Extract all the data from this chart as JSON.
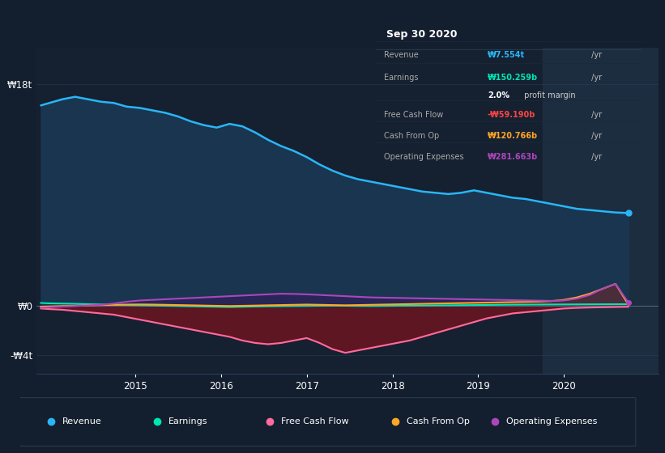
{
  "bg_color": "#131e2e",
  "plot_bg_color": "#152030",
  "highlight_bg": "#1c2d40",
  "colors": {
    "revenue": "#29b6f6",
    "earnings": "#00e5b4",
    "free_cash_flow": "#ff6b9d",
    "cash_from_op": "#ffa726",
    "operating_expenses": "#ab47bc"
  },
  "revenue_fill": "#1a3550",
  "fcf_fill": "#5a1a2a",
  "cashop_fill_pos": "#7a5010",
  "opex_fill": "#3a1a5a",
  "legend_items": [
    {
      "label": "Revenue",
      "color": "#29b6f6"
    },
    {
      "label": "Earnings",
      "color": "#00e5b4"
    },
    {
      "label": "Free Cash Flow",
      "color": "#ff6b9d"
    },
    {
      "label": "Cash From Op",
      "color": "#ffa726"
    },
    {
      "label": "Operating Expenses",
      "color": "#ab47bc"
    }
  ],
  "info_title": "Sep 30 2020",
  "info_rows": [
    {
      "label": "Revenue",
      "value": "₩7.554t",
      "suffix": " /yr",
      "color": "#29b6f6"
    },
    {
      "label": "Earnings",
      "value": "₩150.259b",
      "suffix": " /yr",
      "color": "#00e5b4"
    },
    {
      "label": "",
      "value": "2.0%",
      "suffix": " profit margin",
      "color": "#ffffff"
    },
    {
      "label": "Free Cash Flow",
      "value": "-₩59.190b",
      "suffix": " /yr",
      "color": "#ff4444"
    },
    {
      "label": "Cash From Op",
      "value": "₩120.766b",
      "suffix": " /yr",
      "color": "#ffa726"
    },
    {
      "label": "Operating Expenses",
      "value": "₩281.663b",
      "suffix": " /yr",
      "color": "#ab47bc"
    }
  ],
  "ytick_labels": [
    "₩18t",
    "₩0",
    "-₩4t"
  ],
  "ytick_vals": [
    18000,
    0,
    -4000
  ],
  "xtick_labels": [
    "2015",
    "2016",
    "2017",
    "2018",
    "2019",
    "2020"
  ],
  "xtick_vals": [
    2015,
    2016,
    2017,
    2018,
    2019,
    2020
  ],
  "ylim": [
    -5500,
    21000
  ],
  "xlim": [
    2013.85,
    2021.1
  ]
}
